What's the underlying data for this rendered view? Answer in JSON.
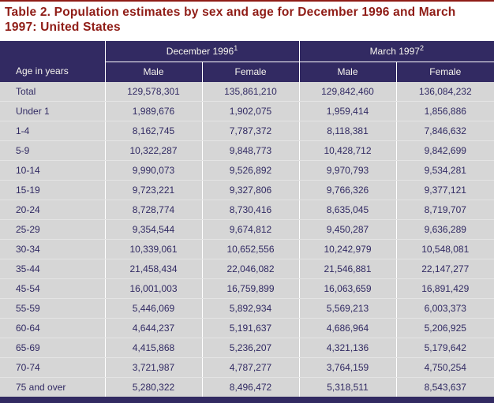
{
  "title": "Table 2. Population estimates by sex and age for December 1996 and March 1997: United States",
  "colors": {
    "title_text": "#8f1c16",
    "header_bg": "#322a62",
    "header_text": "#f7f5ee",
    "body_bg": "#d6d6d6",
    "body_text": "#312a63",
    "grid_line": "#ffffff"
  },
  "table": {
    "row_header": "Age in years",
    "col_groups": [
      {
        "label": "December 1996",
        "superscript": "1",
        "columns": [
          "Male",
          "Female"
        ]
      },
      {
        "label": "March 1997",
        "superscript": "2",
        "columns": [
          "Male",
          "Female"
        ]
      }
    ],
    "rows": [
      {
        "age": "Total",
        "values": [
          "129,578,301",
          "135,861,210",
          "129,842,460",
          "136,084,232"
        ]
      },
      {
        "age": "Under 1",
        "values": [
          "1,989,676",
          "1,902,075",
          "1,959,414",
          "1,856,886"
        ]
      },
      {
        "age": "1-4",
        "values": [
          "8,162,745",
          "7,787,372",
          "8,118,381",
          "7,846,632"
        ]
      },
      {
        "age": "5-9",
        "values": [
          "10,322,287",
          "9,848,773",
          "10,428,712",
          "9,842,699"
        ]
      },
      {
        "age": "10-14",
        "values": [
          "9,990,073",
          "9,526,892",
          "9,970,793",
          "9,534,281"
        ]
      },
      {
        "age": "15-19",
        "values": [
          "9,723,221",
          "9,327,806",
          "9,766,326",
          "9,377,121"
        ]
      },
      {
        "age": "20-24",
        "values": [
          "8,728,774",
          "8,730,416",
          "8,635,045",
          "8,719,707"
        ]
      },
      {
        "age": "25-29",
        "values": [
          "9,354,544",
          "9,674,812",
          "9,450,287",
          "9,636,289"
        ]
      },
      {
        "age": "30-34",
        "values": [
          "10,339,061",
          "10,652,556",
          "10,242,979",
          "10,548,081"
        ]
      },
      {
        "age": "35-44",
        "values": [
          "21,458,434",
          "22,046,082",
          "21,546,881",
          "22,147,277"
        ]
      },
      {
        "age": "45-54",
        "values": [
          "16,001,003",
          "16,759,899",
          "16,063,659",
          "16,891,429"
        ]
      },
      {
        "age": "55-59",
        "values": [
          "5,446,069",
          "5,892,934",
          "5,569,213",
          "6,003,373"
        ]
      },
      {
        "age": "60-64",
        "values": [
          "4,644,237",
          "5,191,637",
          "4,686,964",
          "5,206,925"
        ]
      },
      {
        "age": "65-69",
        "values": [
          "4,415,868",
          "5,236,207",
          "4,321,136",
          "5,179,642"
        ]
      },
      {
        "age": "70-74",
        "values": [
          "3,721,987",
          "4,787,277",
          "3,764,159",
          "4,750,254"
        ]
      },
      {
        "age": "75 and over",
        "values": [
          "5,280,322",
          "8,496,472",
          "5,318,511",
          "8,543,637"
        ]
      }
    ]
  }
}
